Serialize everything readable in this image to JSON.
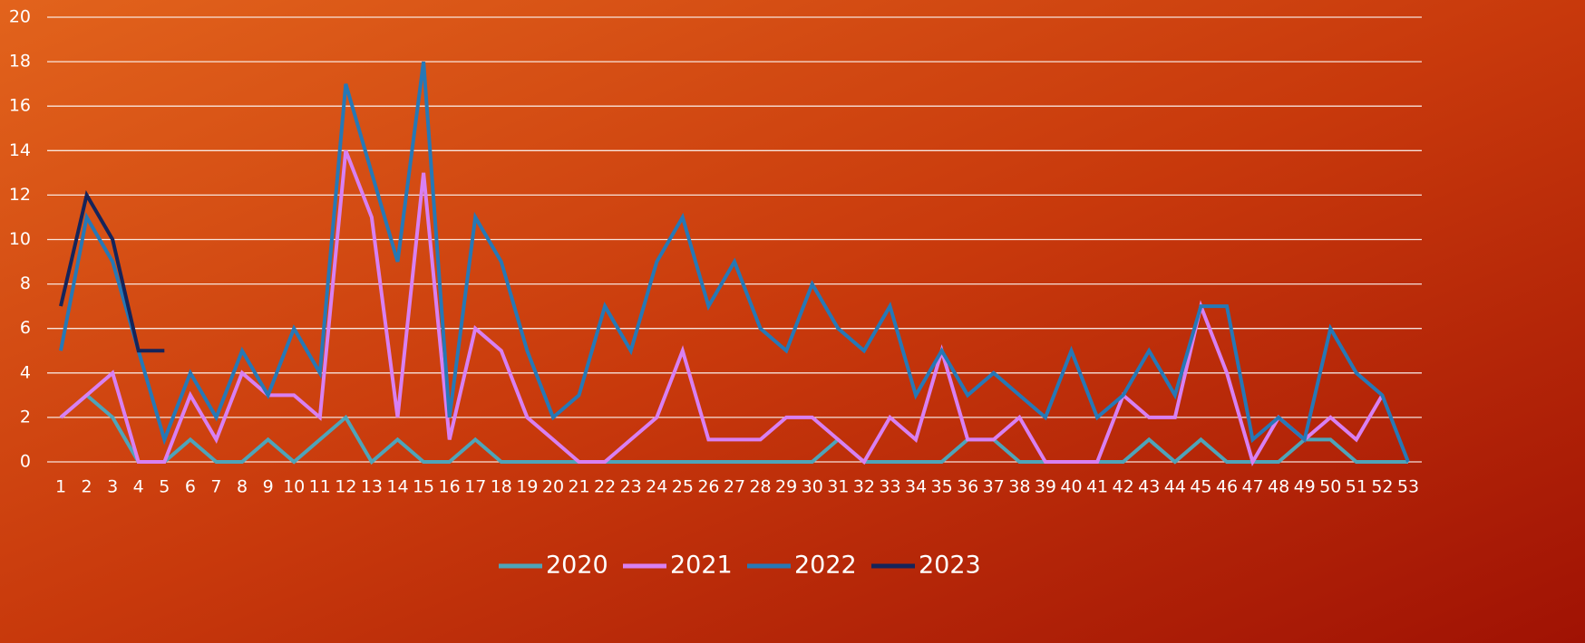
{
  "chart_data": {
    "type": "line",
    "categories": [
      1,
      2,
      3,
      4,
      5,
      6,
      7,
      8,
      9,
      10,
      11,
      12,
      13,
      14,
      15,
      16,
      17,
      18,
      19,
      20,
      21,
      22,
      23,
      24,
      25,
      26,
      27,
      28,
      29,
      30,
      31,
      32,
      33,
      34,
      35,
      36,
      37,
      38,
      39,
      40,
      41,
      42,
      43,
      44,
      45,
      46,
      47,
      48,
      49,
      50,
      51,
      52,
      53
    ],
    "ylim": [
      0,
      20
    ],
    "yticks": [
      0,
      2,
      4,
      6,
      8,
      10,
      12,
      14,
      16,
      18,
      20
    ],
    "grid": true,
    "legend": "bottom",
    "series": [
      {
        "name": "2020",
        "color": "#4ea4b9",
        "values": [
          2,
          3,
          2,
          0,
          0,
          1,
          0,
          0,
          1,
          0,
          1,
          2,
          0,
          1,
          0,
          0,
          1,
          0,
          0,
          0,
          0,
          0,
          0,
          0,
          0,
          0,
          0,
          0,
          0,
          0,
          1,
          0,
          0,
          0,
          0,
          1,
          1,
          0,
          0,
          0,
          0,
          0,
          1,
          0,
          1,
          0,
          0,
          0,
          1,
          1,
          0,
          0,
          0
        ]
      },
      {
        "name": "2021",
        "color": "#d880f2",
        "values": [
          2,
          3,
          4,
          0,
          0,
          3,
          1,
          4,
          3,
          3,
          2,
          14,
          11,
          2,
          13,
          1,
          6,
          5,
          2,
          1,
          0,
          0,
          1,
          2,
          5,
          1,
          1,
          1,
          2,
          2,
          1,
          0,
          2,
          1,
          5,
          1,
          1,
          2,
          0,
          0,
          0,
          3,
          2,
          2,
          7,
          4,
          0,
          2,
          1,
          2,
          1,
          3,
          null
        ]
      },
      {
        "name": "2022",
        "color": "#2678b6",
        "values": [
          5,
          11,
          9,
          5,
          1,
          4,
          2,
          5,
          3,
          6,
          4,
          17,
          13,
          9,
          18,
          2,
          11,
          9,
          5,
          2,
          3,
          7,
          5,
          9,
          11,
          7,
          9,
          6,
          5,
          8,
          6,
          5,
          7,
          3,
          5,
          3,
          4,
          3,
          2,
          5,
          2,
          3,
          5,
          3,
          7,
          7,
          1,
          2,
          1,
          6,
          4,
          3,
          0
        ]
      },
      {
        "name": "2023",
        "color": "#15245a",
        "values": [
          7,
          12,
          10,
          5,
          5,
          null,
          null,
          null,
          null,
          null,
          null,
          null,
          null,
          null,
          null,
          null,
          null,
          null,
          null,
          null,
          null,
          null,
          null,
          null,
          null,
          null,
          null,
          null,
          null,
          null,
          null,
          null,
          null,
          null,
          null,
          null,
          null,
          null,
          null,
          null,
          null,
          null,
          null,
          null,
          null,
          null,
          null,
          null,
          null,
          null,
          null,
          null,
          null
        ]
      }
    ]
  }
}
